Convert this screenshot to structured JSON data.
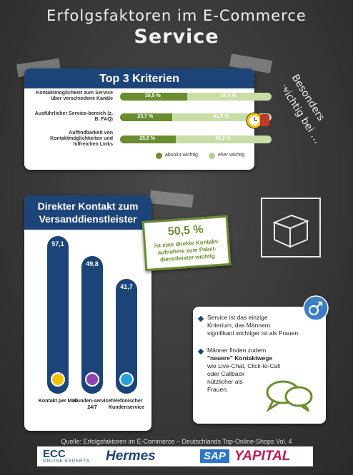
{
  "header": {
    "title": "Erfolgsfaktoren im E-Commerce",
    "subtitle": "Service"
  },
  "chart_data": [
    {
      "type": "bar",
      "orientation": "horizontal",
      "stacked": true,
      "title": "Top 3 Kriterien",
      "categories": [
        "Kontaktmöglichkeit zum Service über verschiedene Kanäle",
        "Ausführlicher Service-bereich (z. B. FAQ)",
        "Auffindbarkeit von Kontaktmöglichkeiten und hilfreichen Links"
      ],
      "series": [
        {
          "name": "absolut wichtig",
          "values": [
            30.5,
            23.7,
            25.5
          ],
          "color": "#6a8d2f"
        },
        {
          "name": "eher wichtig",
          "values": [
            37.6,
            41.5,
            39.3
          ],
          "color": "#b5cf8a"
        }
      ],
      "labels_a": [
        "30,5 %",
        "23,7 %",
        "25,5 %"
      ],
      "labels_b": [
        "37,6 %",
        "41,5 %",
        "39,3 %"
      ],
      "xlim": [
        0,
        100
      ],
      "legend": "bottom-right"
    },
    {
      "type": "bar",
      "orientation": "vertical",
      "title_line1": "Direkter Kontakt zum",
      "title_line2": "Versanddienstleister",
      "categories": [
        "Kontakt per Mail",
        "Kunden-service 24/7",
        "Telefonischer Kundenservice"
      ],
      "values": [
        57.1,
        49.8,
        41.7
      ],
      "value_labels": [
        "57,1",
        "49,8",
        "41,7"
      ],
      "icons": [
        "mail-icon",
        "clock-24-icon",
        "phone-icon"
      ],
      "icon_colors": [
        "#f3c300",
        "#8e44ad",
        "#2a9fd8"
      ],
      "ylim": [
        0,
        60
      ],
      "color": "#1c4478"
    }
  ],
  "side_note": {
    "line1": "Besonders",
    "line2": "wichtig bei …"
  },
  "stat_note": {
    "value": "50,5 %",
    "text1": "ist eine direkte Kontakt-",
    "text2": "aufnahme zum Paket-",
    "text3": "dienstleister wichtig"
  },
  "gender_note": {
    "p1_l1": "Service ist das einzige",
    "p1_l2": "Kriterium, das Männern",
    "p1_l3": "signifikant wichtiger ist als Frauen.",
    "p2_l1": "Männer finden zudem",
    "p2_l2": "\"neuere\" Kontaktwege",
    "p2_l3": "wie Live-Chat, Click-to-Call",
    "p2_l4": "oder Callback",
    "p2_l5": "nützlicher als",
    "p2_l6": "Frauen."
  },
  "footer": {
    "source": "Quelle: Erfolgsfaktoren im E-Commerce – Deutschlands Top-Online-Shops Vol. 4",
    "logos": [
      "ECC",
      "Hermes",
      "SAP",
      "YAPITAL"
    ],
    "logo_tagline": "ONLINE EXPERTS"
  }
}
